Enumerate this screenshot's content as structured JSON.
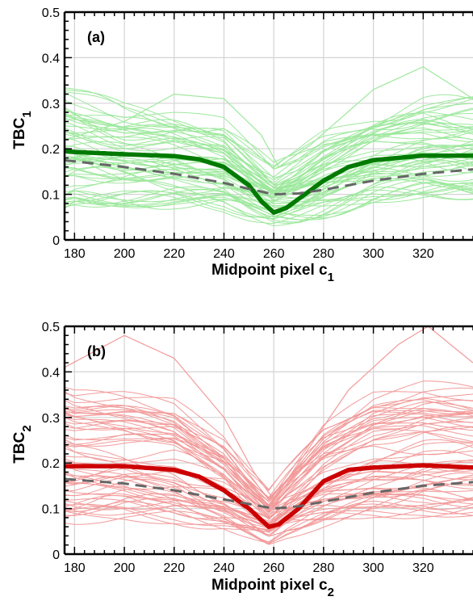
{
  "chart_data": [
    {
      "type": "line",
      "panel_label": "(a)",
      "xlabel": "Midpoint pixel c",
      "xlabel_sub": "1",
      "ylabel": "TBC",
      "ylabel_sub": "1",
      "xlim": [
        176,
        340
      ],
      "ylim": [
        0,
        0.5
      ],
      "xticks": [
        180,
        200,
        220,
        240,
        260,
        280,
        300,
        320
      ],
      "yticks": [
        0,
        0.1,
        0.2,
        0.3,
        0.4,
        0.5
      ],
      "xtick_labels": [
        "180",
        "200",
        "220",
        "240",
        "260",
        "280",
        "300",
        "320"
      ],
      "ytick_labels": [
        "0",
        "0.1",
        "0.2",
        "0.3",
        "0.4",
        "0.5"
      ],
      "grid": true,
      "thin_curve_color": "#9de89d",
      "mean_color": "#007a00",
      "reference_color": "#666666",
      "series": [
        {
          "style": "thick-solid",
          "x": [
            176,
            180,
            200,
            220,
            230,
            240,
            250,
            255,
            260,
            265,
            270,
            280,
            290,
            300,
            320,
            340
          ],
          "y": [
            0.195,
            0.193,
            0.188,
            0.184,
            0.177,
            0.16,
            0.12,
            0.085,
            0.06,
            0.07,
            0.09,
            0.13,
            0.16,
            0.175,
            0.185,
            0.185
          ]
        },
        {
          "style": "dashed",
          "x": [
            176,
            200,
            220,
            240,
            250,
            260,
            270,
            280,
            300,
            320,
            340
          ],
          "y": [
            0.175,
            0.16,
            0.145,
            0.125,
            0.112,
            0.1,
            0.102,
            0.11,
            0.13,
            0.145,
            0.155
          ]
        }
      ],
      "thin_curves": {
        "count": 60,
        "x": [
          176,
          180,
          200,
          220,
          240,
          250,
          260,
          270,
          280,
          300,
          320,
          340
        ],
        "envelope_low": [
          0.07,
          0.08,
          0.085,
          0.08,
          0.07,
          0.055,
          0.045,
          0.05,
          0.06,
          0.09,
          0.1,
          0.1
        ],
        "envelope_high": [
          0.33,
          0.32,
          0.28,
          0.27,
          0.25,
          0.2,
          0.15,
          0.18,
          0.22,
          0.27,
          0.3,
          0.3
        ],
        "outlier": {
          "x": [
            176,
            200,
            220,
            240,
            255,
            262,
            275,
            300,
            320,
            340
          ],
          "y": [
            0.22,
            0.26,
            0.32,
            0.31,
            0.23,
            0.16,
            0.21,
            0.33,
            0.38,
            0.31
          ]
        }
      }
    },
    {
      "type": "line",
      "panel_label": "(b)",
      "xlabel": "Midpoint pixel c",
      "xlabel_sub": "2",
      "ylabel": "TBC",
      "ylabel_sub": "2",
      "xlim": [
        176,
        340
      ],
      "ylim": [
        0,
        0.5
      ],
      "xticks": [
        180,
        200,
        220,
        240,
        260,
        280,
        300,
        320
      ],
      "yticks": [
        0,
        0.1,
        0.2,
        0.3,
        0.4,
        0.5
      ],
      "xtick_labels": [
        "180",
        "200",
        "220",
        "240",
        "260",
        "280",
        "300",
        "320"
      ],
      "ytick_labels": [
        "0",
        "0.1",
        "0.2",
        "0.3",
        "0.4",
        "0.5"
      ],
      "grid": true,
      "thin_curve_color": "#f29a9a",
      "mean_color": "#cc0000",
      "reference_color": "#666666",
      "series": [
        {
          "style": "thick-solid",
          "x": [
            176,
            180,
            200,
            220,
            230,
            240,
            250,
            255,
            258,
            262,
            270,
            280,
            290,
            300,
            320,
            340
          ],
          "y": [
            0.193,
            0.193,
            0.193,
            0.185,
            0.17,
            0.14,
            0.1,
            0.075,
            0.06,
            0.065,
            0.1,
            0.16,
            0.185,
            0.19,
            0.195,
            0.19
          ]
        },
        {
          "style": "dashed",
          "x": [
            176,
            200,
            220,
            240,
            250,
            260,
            270,
            280,
            300,
            320,
            340
          ],
          "y": [
            0.165,
            0.155,
            0.14,
            0.12,
            0.11,
            0.1,
            0.105,
            0.115,
            0.135,
            0.15,
            0.158
          ]
        }
      ],
      "thin_curves": {
        "count": 60,
        "x": [
          176,
          180,
          200,
          220,
          240,
          250,
          258,
          265,
          280,
          300,
          320,
          340
        ],
        "envelope_low": [
          0.07,
          0.07,
          0.08,
          0.075,
          0.06,
          0.045,
          0.03,
          0.045,
          0.06,
          0.08,
          0.09,
          0.09
        ],
        "envelope_high": [
          0.37,
          0.36,
          0.35,
          0.33,
          0.25,
          0.18,
          0.13,
          0.18,
          0.28,
          0.35,
          0.37,
          0.36
        ],
        "outlier": {
          "x": [
            176,
            200,
            220,
            240,
            252,
            260,
            270,
            290,
            310,
            322,
            340
          ],
          "y": [
            0.41,
            0.48,
            0.43,
            0.3,
            0.18,
            0.12,
            0.2,
            0.36,
            0.46,
            0.5,
            0.42
          ]
        }
      }
    }
  ]
}
